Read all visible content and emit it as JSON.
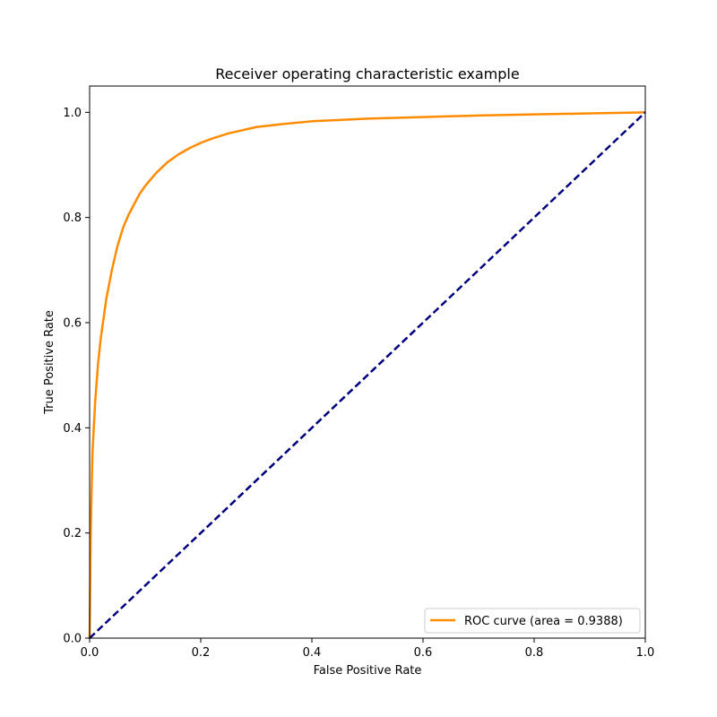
{
  "chart_data": {
    "type": "line",
    "title": "Receiver operating characteristic example",
    "xlabel": "False Positive Rate",
    "ylabel": "True Positive Rate",
    "xlim": [
      0.0,
      1.0
    ],
    "ylim": [
      0.0,
      1.05
    ],
    "xticks": [
      "0.0",
      "0.2",
      "0.4",
      "0.6",
      "0.8",
      "1.0"
    ],
    "yticks": [
      "0.0",
      "0.2",
      "0.4",
      "0.6",
      "0.8",
      "1.0"
    ],
    "grid": false,
    "legend_position": "lower-right",
    "series": [
      {
        "name": "ROC curve (area = 0.9388)",
        "color": "#ff8c00",
        "style": "solid",
        "x": [
          0.0,
          0.002,
          0.005,
          0.01,
          0.015,
          0.02,
          0.03,
          0.04,
          0.05,
          0.06,
          0.07,
          0.08,
          0.09,
          0.1,
          0.12,
          0.14,
          0.16,
          0.18,
          0.2,
          0.22,
          0.25,
          0.3,
          0.35,
          0.4,
          0.5,
          0.6,
          0.7,
          0.8,
          0.9,
          1.0
        ],
        "y": [
          0.0,
          0.2,
          0.35,
          0.45,
          0.52,
          0.57,
          0.645,
          0.7,
          0.745,
          0.78,
          0.805,
          0.825,
          0.845,
          0.86,
          0.885,
          0.905,
          0.92,
          0.932,
          0.942,
          0.95,
          0.96,
          0.972,
          0.978,
          0.983,
          0.988,
          0.991,
          0.994,
          0.996,
          0.998,
          1.0
        ]
      },
      {
        "name": "",
        "color": "#000080",
        "style": "dashed",
        "x": [
          0.0,
          1.0
        ],
        "y": [
          0.0,
          1.0
        ]
      }
    ]
  }
}
